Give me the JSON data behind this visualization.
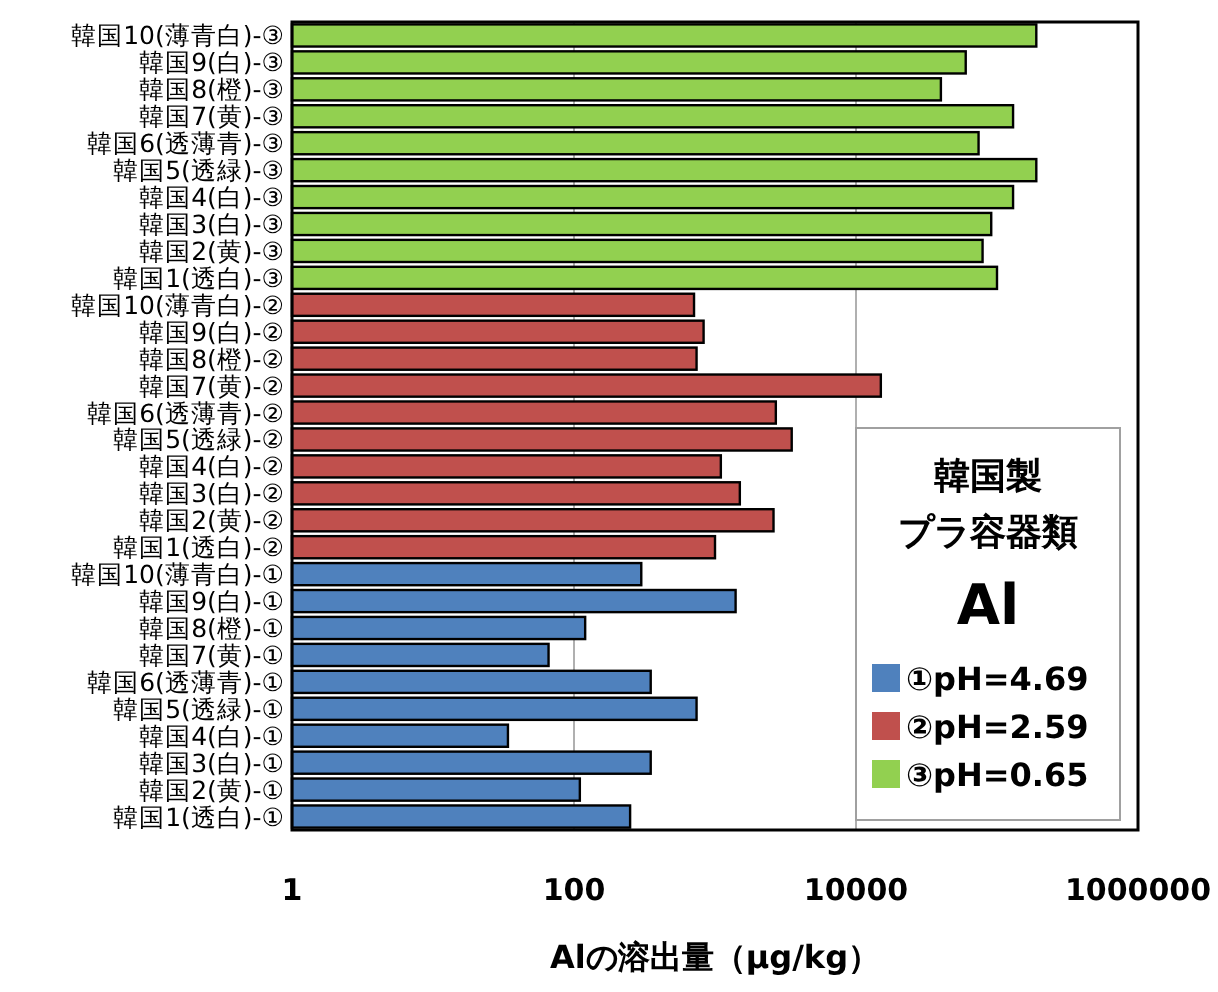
{
  "chart_data": {
    "type": "bar",
    "orientation": "horizontal",
    "log": "x",
    "grid": "x",
    "legend": "bottom right",
    "legend_title": "韓国製プラ容器類",
    "annotations": [
      "Al"
    ],
    "xlabel": "Alの溶出量（μg/kg）",
    "xlim": [
      1,
      1000000
    ],
    "xticks": [
      1,
      100,
      10000,
      1000000
    ],
    "categories": [
      "韓国10(薄青白)-③",
      "韓国9(白)-③",
      "韓国8(橙)-③",
      "韓国7(黄)-③",
      "韓国6(透薄青)-③",
      "韓国5(透緑)-③",
      "韓国4(白)-③",
      "韓国3(白)-③",
      "韓国2(黄)-③",
      "韓国1(透白)-③",
      "韓国10(薄青白)-②",
      "韓国9(白)-②",
      "韓国8(橙)-②",
      "韓国7(黄)-②",
      "韓国6(透薄青)-②",
      "韓国5(透緑)-②",
      "韓国4(白)-②",
      "韓国3(白)-②",
      "韓国2(黄)-②",
      "韓国1(透白)-②",
      "韓国10(薄青白)-①",
      "韓国9(白)-①",
      "韓国8(橙)-①",
      "韓国7(黄)-①",
      "韓国6(透薄青)-①",
      "韓国5(透緑)-①",
      "韓国4(白)-①",
      "韓国3(白)-①",
      "韓国2(黄)-①",
      "韓国1(透白)-①"
    ],
    "series": [
      {
        "name": "①pH=4.69",
        "color": "#4f81bd",
        "values": [
          null,
          null,
          null,
          null,
          null,
          null,
          null,
          null,
          null,
          null,
          null,
          null,
          null,
          null,
          null,
          null,
          null,
          null,
          null,
          null,
          300,
          1400,
          120,
          66,
          350,
          740,
          34,
          350,
          110,
          250
        ]
      },
      {
        "name": "②pH=2.59",
        "color": "#c0504d",
        "values": [
          null,
          null,
          null,
          null,
          null,
          null,
          null,
          null,
          null,
          null,
          710,
          830,
          740,
          15000,
          2700,
          3500,
          1100,
          1500,
          2600,
          1000,
          null,
          null,
          null,
          null,
          null,
          null,
          null,
          null,
          null,
          null
        ]
      },
      {
        "name": "③pH=0.65",
        "color": "#92d050",
        "values": [
          190000,
          60000,
          40000,
          130000,
          74000,
          190000,
          130000,
          91000,
          79000,
          100000,
          null,
          null,
          null,
          null,
          null,
          null,
          null,
          null,
          null,
          null,
          null,
          null,
          null,
          null,
          null,
          null,
          null,
          null,
          null,
          null
        ]
      }
    ]
  }
}
